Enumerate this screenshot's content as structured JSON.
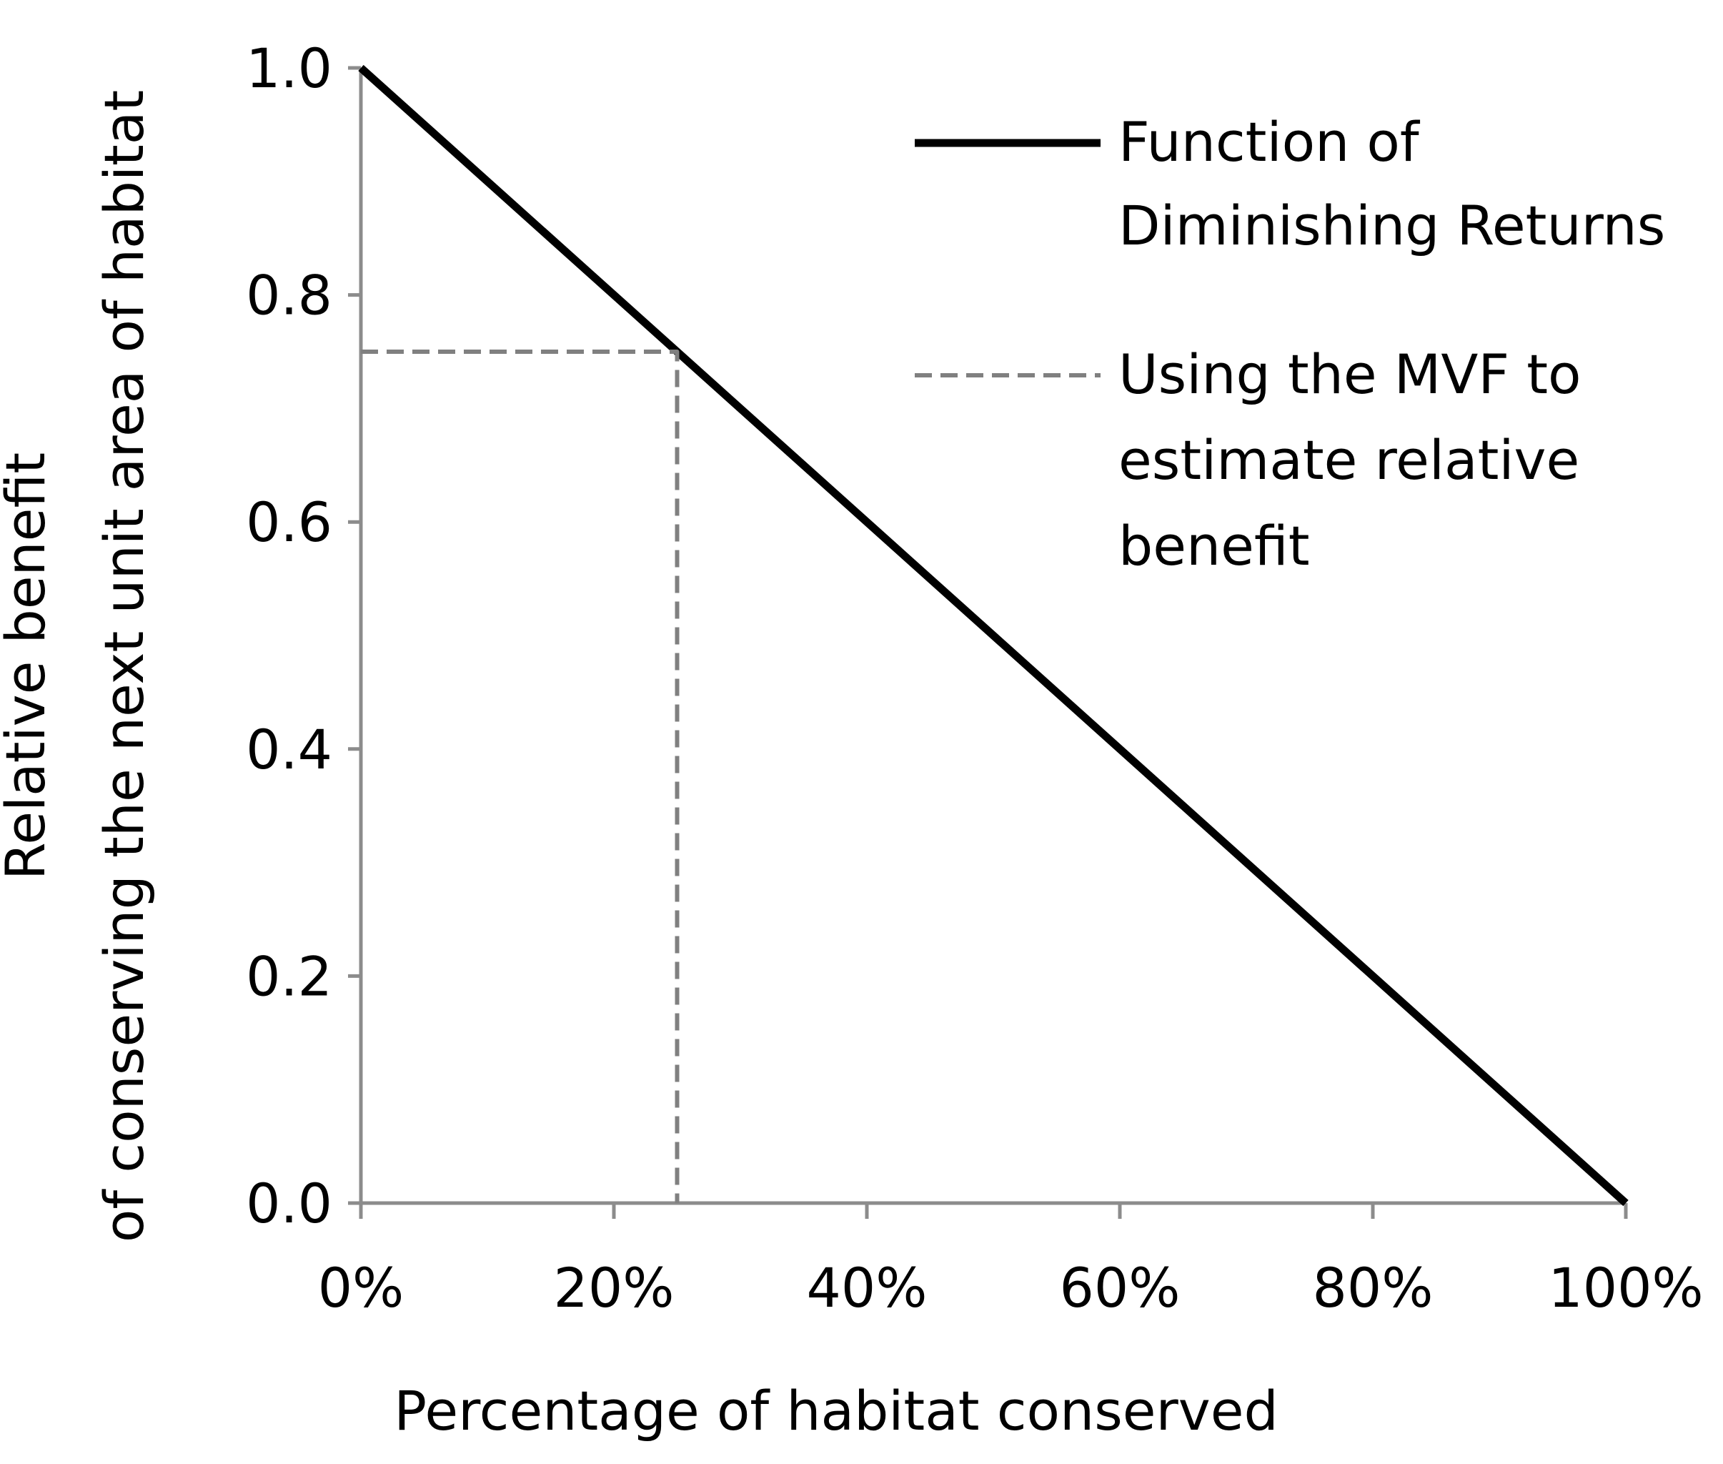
{
  "chart_data": {
    "type": "line",
    "title": "",
    "xlabel": "Percentage of habitat conserved",
    "ylabel_lines": [
      "Relative benefit",
      "of conserving the next unit area of habitat"
    ],
    "xlim": [
      0,
      100
    ],
    "ylim": [
      0,
      1
    ],
    "x_ticks": [
      0,
      20,
      40,
      60,
      80,
      100
    ],
    "x_tick_labels": [
      "0%",
      "20%",
      "40%",
      "60%",
      "80%",
      "100%"
    ],
    "y_ticks": [
      0,
      0.2,
      0.4,
      0.6,
      0.8,
      1.0
    ],
    "y_tick_labels": [
      "0.0",
      "0.2",
      "0.4",
      "0.6",
      "0.8",
      "1.0"
    ],
    "grid": false,
    "legend_position": "top-right",
    "series": [
      {
        "name": "Function of Diminishing Returns",
        "legend_lines": [
          "Function of",
          "Diminishing Returns"
        ],
        "style": "solid",
        "color": "#000000",
        "x": [
          0,
          100
        ],
        "y": [
          1.0,
          0.0
        ]
      },
      {
        "name": "Using the MVF to estimate relative benefit",
        "legend_lines": [
          "Using the MVF to",
          "estimate relative",
          "benefit"
        ],
        "style": "dashed",
        "color": "#808080",
        "x": [
          0,
          25,
          25
        ],
        "y": [
          0.75,
          0.75,
          0.0
        ]
      }
    ]
  }
}
